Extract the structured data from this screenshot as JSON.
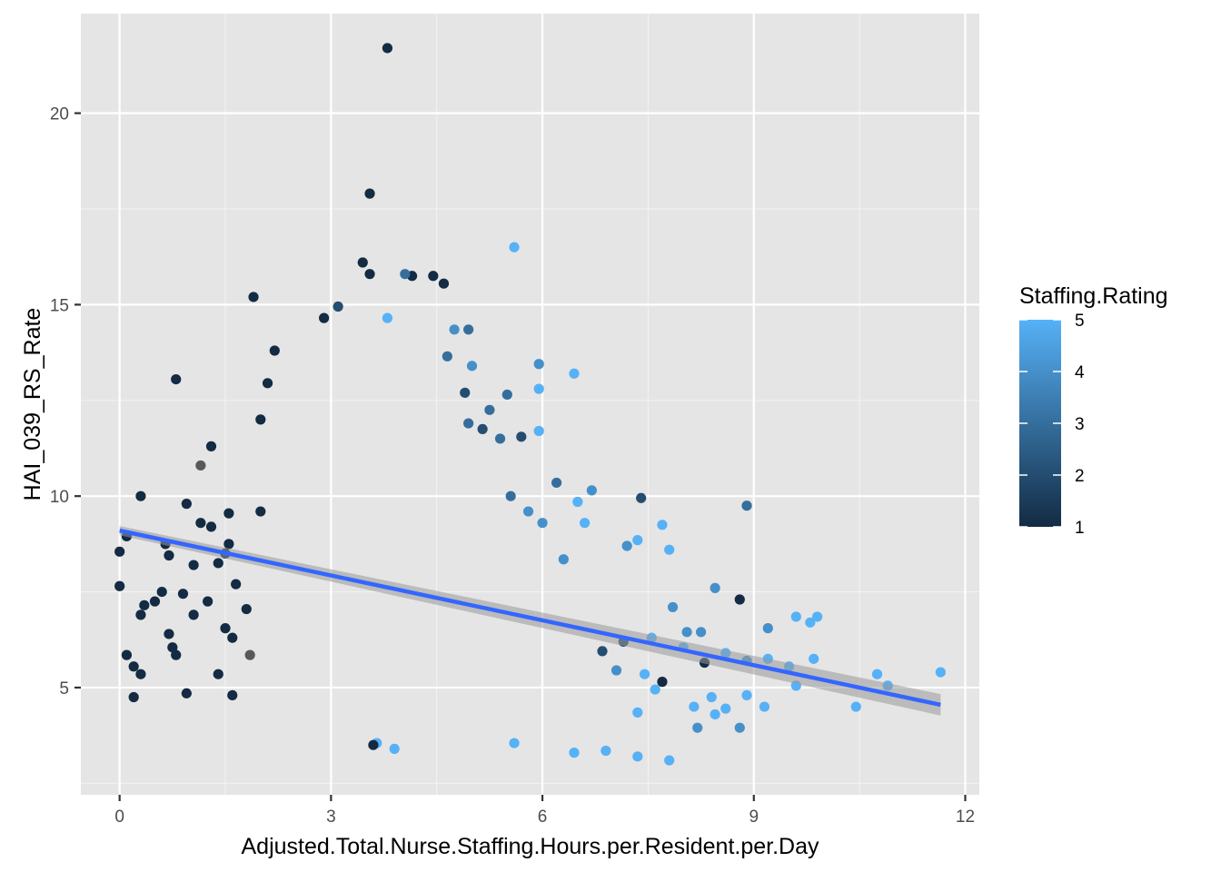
{
  "chart_data": {
    "type": "scatter",
    "title": "",
    "xlabel": "Adjusted.Total.Nurse.Staffing.Hours.per.Resident.per.Day",
    "ylabel": "HAI_039_RS_Rate",
    "xlim": [
      -0.55,
      12.2
    ],
    "ylim": [
      2.2,
      22.6
    ],
    "x_ticks": [
      0,
      3,
      6,
      9,
      12
    ],
    "y_ticks": [
      5,
      10,
      15,
      20
    ],
    "x_tick_labels": [
      "0",
      "3",
      "6",
      "9",
      "12"
    ],
    "y_tick_labels": [
      "5",
      "10",
      "15",
      "20"
    ],
    "grid": true,
    "background": "#e5e5e5",
    "legend": {
      "title": "Staffing.Rating",
      "type": "colorbar",
      "position": "right",
      "range": [
        1,
        5
      ],
      "breaks": [
        1,
        2,
        3,
        4,
        5
      ],
      "break_labels": [
        "1",
        "2",
        "3",
        "4",
        "5"
      ],
      "low_color": "#132b43",
      "high_color": "#56b1f7"
    },
    "na_color": "#595959",
    "trend_line": {
      "method": "lm",
      "color": "#3366ff",
      "ribbon_color": "#999999",
      "start": [
        0,
        9.1
      ],
      "end": [
        11.65,
        4.55
      ],
      "se_start": 0.12,
      "se_end": 0.28
    },
    "points": [
      [
        3.8,
        21.7,
        1
      ],
      [
        3.55,
        17.9,
        1
      ],
      [
        5.6,
        16.5,
        5
      ],
      [
        3.45,
        16.1,
        1
      ],
      [
        1.9,
        15.2,
        1
      ],
      [
        0.8,
        13.05,
        1
      ],
      [
        1.3,
        11.3,
        1
      ],
      [
        1.15,
        10.8,
        null
      ],
      [
        0.3,
        10.0,
        1
      ],
      [
        0.1,
        8.95,
        1
      ],
      [
        0.0,
        8.55,
        1
      ],
      [
        0.0,
        7.65,
        1
      ],
      [
        0.7,
        8.45,
        1
      ],
      [
        0.65,
        8.75,
        1
      ],
      [
        0.6,
        7.5,
        1
      ],
      [
        0.5,
        7.25,
        1
      ],
      [
        0.35,
        7.15,
        1
      ],
      [
        0.3,
        6.9,
        1
      ],
      [
        0.9,
        7.45,
        1
      ],
      [
        1.05,
        6.9,
        1
      ],
      [
        1.25,
        7.25,
        1
      ],
      [
        0.7,
        6.4,
        1
      ],
      [
        0.75,
        6.05,
        1
      ],
      [
        0.8,
        5.85,
        1
      ],
      [
        0.1,
        5.85,
        1
      ],
      [
        0.2,
        5.55,
        1
      ],
      [
        0.3,
        5.35,
        1
      ],
      [
        0.2,
        4.75,
        1
      ],
      [
        0.95,
        4.85,
        1
      ],
      [
        1.4,
        5.35,
        1
      ],
      [
        1.6,
        4.8,
        1
      ],
      [
        1.6,
        6.3,
        1
      ],
      [
        1.5,
        6.55,
        1
      ],
      [
        1.85,
        5.85,
        null
      ],
      [
        1.05,
        8.2,
        1
      ],
      [
        1.5,
        8.5,
        1
      ],
      [
        1.55,
        8.75,
        1
      ],
      [
        0.95,
        9.8,
        1
      ],
      [
        1.15,
        9.3,
        1
      ],
      [
        1.3,
        9.2,
        1
      ],
      [
        1.4,
        8.25,
        1
      ],
      [
        1.8,
        7.05,
        1
      ],
      [
        1.65,
        7.7,
        1
      ],
      [
        1.55,
        9.55,
        1
      ],
      [
        2.0,
        9.6,
        1
      ],
      [
        5.95,
        13.45,
        4
      ],
      [
        6.45,
        13.2,
        5
      ],
      [
        5.95,
        12.8,
        5
      ],
      [
        5.95,
        11.7,
        5
      ],
      [
        6.2,
        10.35,
        3
      ],
      [
        6.7,
        10.15,
        4
      ],
      [
        7.4,
        9.95,
        2
      ],
      [
        8.9,
        9.75,
        3
      ],
      [
        7.7,
        9.25,
        5
      ],
      [
        6.5,
        9.85,
        5
      ],
      [
        7.35,
        8.85,
        5
      ],
      [
        7.8,
        8.6,
        5
      ],
      [
        7.2,
        8.7,
        4
      ],
      [
        8.45,
        7.6,
        4
      ],
      [
        8.8,
        7.3,
        1
      ],
      [
        8.25,
        6.45,
        4
      ],
      [
        9.2,
        6.55,
        4
      ],
      [
        9.6,
        6.85,
        5
      ],
      [
        9.9,
        6.85,
        5
      ],
      [
        9.8,
        6.7,
        5
      ],
      [
        8.05,
        6.45,
        4
      ],
      [
        8.6,
        5.9,
        5
      ],
      [
        8.9,
        5.7,
        4
      ],
      [
        9.5,
        5.55,
        5
      ],
      [
        9.85,
        5.75,
        5
      ],
      [
        10.75,
        5.35,
        5
      ],
      [
        10.9,
        5.05,
        5
      ],
      [
        11.65,
        5.4,
        5
      ],
      [
        10.45,
        4.5,
        5
      ],
      [
        9.2,
        5.75,
        5
      ],
      [
        9.6,
        5.05,
        5
      ],
      [
        8.9,
        4.8,
        5
      ],
      [
        9.15,
        4.5,
        5
      ],
      [
        8.6,
        4.45,
        5
      ],
      [
        8.4,
        4.75,
        5
      ],
      [
        8.15,
        4.5,
        5
      ],
      [
        8.2,
        3.95,
        4
      ],
      [
        8.45,
        4.3,
        5
      ],
      [
        8.8,
        3.95,
        4
      ],
      [
        7.7,
        5.15,
        1
      ],
      [
        7.45,
        5.35,
        5
      ],
      [
        7.6,
        4.95,
        5
      ],
      [
        7.35,
        4.35,
        5
      ],
      [
        7.8,
        3.1,
        5
      ],
      [
        7.35,
        3.2,
        5
      ],
      [
        6.9,
        3.35,
        5
      ],
      [
        6.45,
        3.3,
        5
      ],
      [
        5.6,
        3.55,
        5
      ],
      [
        3.65,
        3.55,
        5
      ],
      [
        3.9,
        3.4,
        5
      ],
      [
        3.6,
        3.5,
        1
      ],
      [
        7.85,
        7.1,
        4
      ],
      [
        7.55,
        6.3,
        5
      ],
      [
        8.0,
        6.05,
        5
      ],
      [
        8.3,
        5.65,
        1
      ],
      [
        7.15,
        6.2,
        2
      ],
      [
        6.85,
        5.95,
        2
      ],
      [
        7.05,
        5.45,
        4
      ],
      [
        6.3,
        8.35,
        4
      ],
      [
        6.6,
        9.3,
        5
      ],
      [
        6.0,
        9.3,
        4
      ],
      [
        5.8,
        9.6,
        4
      ],
      [
        5.55,
        10.0,
        3
      ],
      [
        5.4,
        11.5,
        3
      ],
      [
        5.7,
        11.55,
        2
      ],
      [
        5.15,
        11.75,
        2
      ],
      [
        4.95,
        11.9,
        3
      ],
      [
        4.9,
        12.7,
        2
      ],
      [
        4.65,
        13.65,
        3
      ],
      [
        4.75,
        14.35,
        4
      ],
      [
        4.95,
        14.35,
        3
      ],
      [
        5.0,
        13.4,
        4
      ],
      [
        5.25,
        12.25,
        3
      ],
      [
        5.5,
        12.65,
        3
      ],
      [
        4.45,
        15.75,
        1
      ],
      [
        4.6,
        15.55,
        1
      ],
      [
        4.15,
        15.75,
        1
      ],
      [
        4.05,
        15.8,
        3
      ],
      [
        3.55,
        15.8,
        1
      ],
      [
        3.8,
        14.65,
        5
      ],
      [
        3.1,
        14.95,
        2
      ],
      [
        2.9,
        14.65,
        1
      ],
      [
        2.2,
        13.8,
        1
      ],
      [
        2.1,
        12.95,
        1
      ],
      [
        2.0,
        12.0,
        1
      ]
    ]
  }
}
